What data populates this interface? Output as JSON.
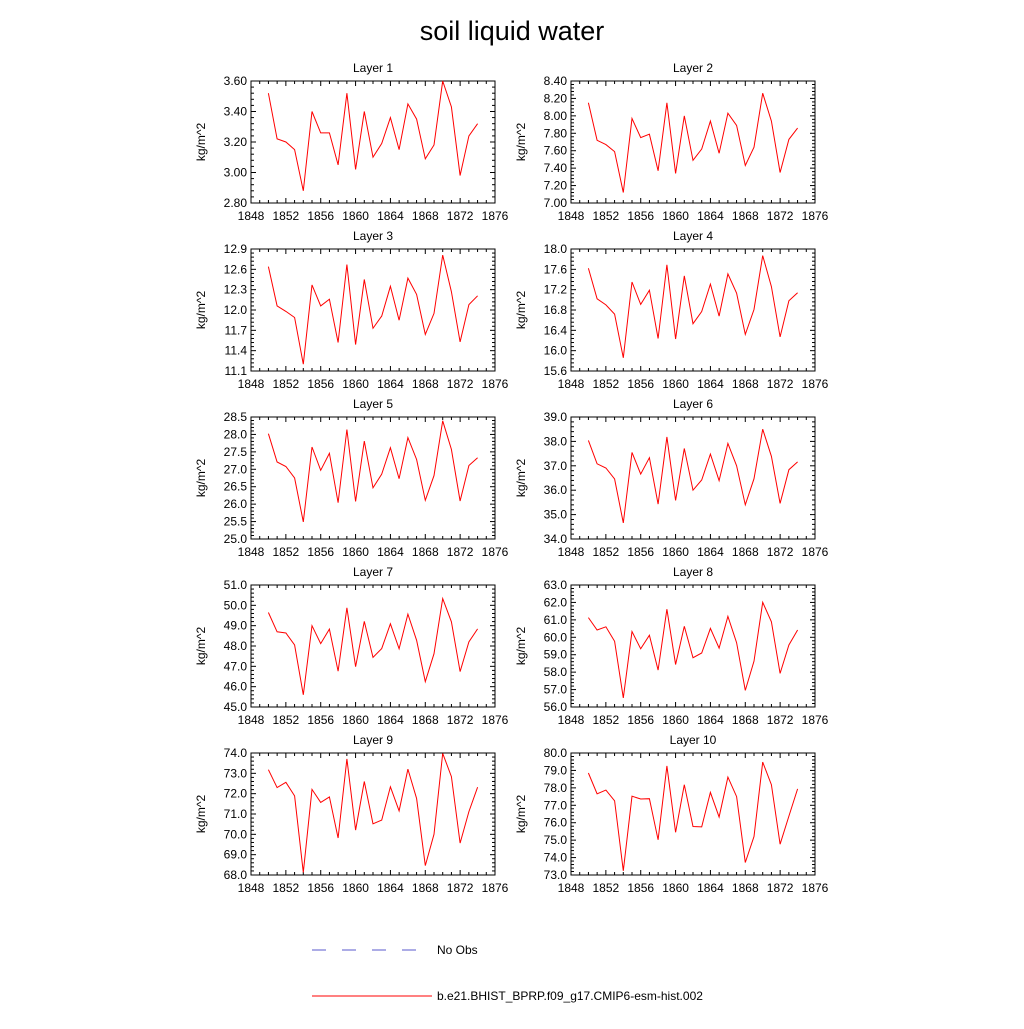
{
  "figure": {
    "title": "soil liquid water"
  },
  "legend": {
    "entries": [
      {
        "label": "No Obs",
        "color": "#5a5acd",
        "dash": true
      },
      {
        "label": "b.e21.BHIST_BPRP.f09_g17.CMIP6-esm-hist.002",
        "color": "#ff0000",
        "dash": false
      }
    ]
  },
  "chart_data": [
    {
      "type": "line",
      "title": "Layer 1",
      "xlabel": "",
      "ylabel": "kg/m^2",
      "xlim": [
        1848,
        1876
      ],
      "ylim": [
        2.8,
        3.6
      ],
      "xticks": [
        "1848",
        "1852",
        "1856",
        "1860",
        "1864",
        "1868",
        "1872",
        "1876"
      ],
      "yticks": [
        "2.80",
        "3.00",
        "3.20",
        "3.40",
        "3.60"
      ],
      "x": [
        1850,
        1851,
        1852,
        1853,
        1854,
        1855,
        1856,
        1857,
        1858,
        1859,
        1860,
        1861,
        1862,
        1863,
        1864,
        1865,
        1866,
        1867,
        1868,
        1869,
        1870,
        1871,
        1872,
        1873,
        1874
      ],
      "series": [
        {
          "name": "b.e21.BHIST_BPRP.f09_g17.CMIP6-esm-hist.002",
          "values": [
            3.52,
            3.22,
            3.2,
            3.15,
            2.88,
            3.4,
            3.26,
            3.26,
            3.05,
            3.52,
            3.02,
            3.4,
            3.1,
            3.19,
            3.36,
            3.15,
            3.45,
            3.35,
            3.09,
            3.18,
            3.6,
            3.43,
            2.98,
            3.24,
            3.32
          ]
        }
      ]
    },
    {
      "type": "line",
      "title": "Layer 2",
      "xlabel": "",
      "ylabel": "kg/m^2",
      "xlim": [
        1848,
        1876
      ],
      "ylim": [
        7.0,
        8.4
      ],
      "xticks": [
        "1848",
        "1852",
        "1856",
        "1860",
        "1864",
        "1868",
        "1872",
        "1876"
      ],
      "yticks": [
        "7.00",
        "7.20",
        "7.40",
        "7.60",
        "7.80",
        "8.00",
        "8.20",
        "8.40"
      ],
      "x": [
        1850,
        1851,
        1852,
        1853,
        1854,
        1855,
        1856,
        1857,
        1858,
        1859,
        1860,
        1861,
        1862,
        1863,
        1864,
        1865,
        1866,
        1867,
        1868,
        1869,
        1870,
        1871,
        1872,
        1873,
        1874
      ],
      "series": [
        {
          "name": "b.e21.BHIST_BPRP.f09_g17.CMIP6-esm-hist.002",
          "values": [
            8.15,
            7.72,
            7.67,
            7.59,
            7.12,
            7.97,
            7.75,
            7.79,
            7.37,
            8.15,
            7.34,
            8.0,
            7.49,
            7.62,
            7.94,
            7.57,
            8.03,
            7.89,
            7.43,
            7.64,
            8.26,
            7.94,
            7.35,
            7.73,
            7.86
          ]
        }
      ]
    },
    {
      "type": "line",
      "title": "Layer 3",
      "xlabel": "",
      "ylabel": "kg/m^2",
      "xlim": [
        1848,
        1876
      ],
      "ylim": [
        11.1,
        12.9
      ],
      "xticks": [
        "1848",
        "1852",
        "1856",
        "1860",
        "1864",
        "1868",
        "1872",
        "1876"
      ],
      "yticks": [
        "11.1",
        "11.4",
        "11.7",
        "12.0",
        "12.3",
        "12.6",
        "12.9"
      ],
      "x": [
        1850,
        1851,
        1852,
        1853,
        1854,
        1855,
        1856,
        1857,
        1858,
        1859,
        1860,
        1861,
        1862,
        1863,
        1864,
        1865,
        1866,
        1867,
        1868,
        1869,
        1870,
        1871,
        1872,
        1873,
        1874
      ],
      "series": [
        {
          "name": "b.e21.BHIST_BPRP.f09_g17.CMIP6-esm-hist.002",
          "values": [
            12.64,
            12.06,
            11.98,
            11.89,
            11.2,
            12.37,
            12.06,
            12.16,
            11.52,
            12.67,
            11.49,
            12.45,
            11.73,
            11.91,
            12.35,
            11.85,
            12.47,
            12.23,
            11.64,
            11.95,
            12.81,
            12.27,
            11.53,
            12.08,
            12.21
          ]
        }
      ]
    },
    {
      "type": "line",
      "title": "Layer 4",
      "xlabel": "",
      "ylabel": "kg/m^2",
      "xlim": [
        1848,
        1876
      ],
      "ylim": [
        15.6,
        18.0
      ],
      "xticks": [
        "1848",
        "1852",
        "1856",
        "1860",
        "1864",
        "1868",
        "1872",
        "1876"
      ],
      "yticks": [
        "15.6",
        "16.0",
        "16.4",
        "16.8",
        "17.2",
        "17.6",
        "18.0"
      ],
      "x": [
        1850,
        1851,
        1852,
        1853,
        1854,
        1855,
        1856,
        1857,
        1858,
        1859,
        1860,
        1861,
        1862,
        1863,
        1864,
        1865,
        1866,
        1867,
        1868,
        1869,
        1870,
        1871,
        1872,
        1873,
        1874
      ],
      "series": [
        {
          "name": "b.e21.BHIST_BPRP.f09_g17.CMIP6-esm-hist.002",
          "values": [
            17.62,
            17.02,
            16.9,
            16.72,
            15.86,
            17.35,
            16.91,
            17.19,
            16.24,
            17.69,
            16.23,
            17.47,
            16.53,
            16.77,
            17.31,
            16.68,
            17.51,
            17.13,
            16.32,
            16.81,
            17.87,
            17.26,
            16.27,
            16.98,
            17.14
          ]
        }
      ]
    },
    {
      "type": "line",
      "title": "Layer 5",
      "xlabel": "",
      "ylabel": "kg/m^2",
      "xlim": [
        1848,
        1876
      ],
      "ylim": [
        25.0,
        28.5
      ],
      "xticks": [
        "1848",
        "1852",
        "1856",
        "1860",
        "1864",
        "1868",
        "1872",
        "1876"
      ],
      "yticks": [
        "25.0",
        "25.5",
        "26.0",
        "26.5",
        "27.0",
        "27.5",
        "28.0",
        "28.5"
      ],
      "x": [
        1850,
        1851,
        1852,
        1853,
        1854,
        1855,
        1856,
        1857,
        1858,
        1859,
        1860,
        1861,
        1862,
        1863,
        1864,
        1865,
        1866,
        1867,
        1868,
        1869,
        1870,
        1871,
        1872,
        1873,
        1874
      ],
      "series": [
        {
          "name": "b.e21.BHIST_BPRP.f09_g17.CMIP6-esm-hist.002",
          "values": [
            28.02,
            27.21,
            27.08,
            26.75,
            25.49,
            27.64,
            26.97,
            27.46,
            26.04,
            28.14,
            26.08,
            27.81,
            26.47,
            26.86,
            27.62,
            26.73,
            27.91,
            27.28,
            26.11,
            26.82,
            28.39,
            27.57,
            26.09,
            27.11,
            27.33
          ]
        }
      ]
    },
    {
      "type": "line",
      "title": "Layer 6",
      "xlabel": "",
      "ylabel": "kg/m^2",
      "xlim": [
        1848,
        1876
      ],
      "ylim": [
        34.0,
        39.0
      ],
      "xticks": [
        "1848",
        "1852",
        "1856",
        "1860",
        "1864",
        "1868",
        "1872",
        "1876"
      ],
      "yticks": [
        "34.0",
        "35.0",
        "36.0",
        "37.0",
        "38.0",
        "39.0"
      ],
      "x": [
        1850,
        1851,
        1852,
        1853,
        1854,
        1855,
        1856,
        1857,
        1858,
        1859,
        1860,
        1861,
        1862,
        1863,
        1864,
        1865,
        1866,
        1867,
        1868,
        1869,
        1870,
        1871,
        1872,
        1873,
        1874
      ],
      "series": [
        {
          "name": "b.e21.BHIST_BPRP.f09_g17.CMIP6-esm-hist.002",
          "values": [
            38.04,
            37.08,
            36.91,
            36.46,
            34.66,
            37.55,
            36.66,
            37.33,
            35.43,
            38.18,
            35.58,
            37.71,
            36.0,
            36.42,
            37.48,
            36.39,
            37.92,
            37.0,
            35.4,
            36.47,
            38.5,
            37.39,
            35.46,
            36.84,
            37.16
          ]
        }
      ]
    },
    {
      "type": "line",
      "title": "Layer 7",
      "xlabel": "",
      "ylabel": "kg/m^2",
      "xlim": [
        1848,
        1876
      ],
      "ylim": [
        45.0,
        51.0
      ],
      "xticks": [
        "1848",
        "1852",
        "1856",
        "1860",
        "1864",
        "1868",
        "1872",
        "1876"
      ],
      "yticks": [
        "45.0",
        "46.0",
        "47.0",
        "48.0",
        "49.0",
        "50.0",
        "51.0"
      ],
      "x": [
        1850,
        1851,
        1852,
        1853,
        1854,
        1855,
        1856,
        1857,
        1858,
        1859,
        1860,
        1861,
        1862,
        1863,
        1864,
        1865,
        1866,
        1867,
        1868,
        1869,
        1870,
        1871,
        1872,
        1873,
        1874
      ],
      "series": [
        {
          "name": "b.e21.BHIST_BPRP.f09_g17.CMIP6-esm-hist.002",
          "values": [
            49.65,
            48.7,
            48.64,
            48.05,
            45.6,
            49.0,
            48.12,
            48.83,
            46.76,
            49.88,
            46.98,
            49.21,
            47.44,
            47.87,
            49.09,
            47.86,
            49.57,
            48.28,
            46.25,
            47.62,
            50.33,
            49.19,
            46.74,
            48.2,
            48.84
          ]
        }
      ]
    },
    {
      "type": "line",
      "title": "Layer 8",
      "xlabel": "",
      "ylabel": "kg/m^2",
      "xlim": [
        1848,
        1876
      ],
      "ylim": [
        56.0,
        63.0
      ],
      "xticks": [
        "1848",
        "1852",
        "1856",
        "1860",
        "1864",
        "1868",
        "1872",
        "1876"
      ],
      "yticks": [
        "56.0",
        "57.0",
        "58.0",
        "59.0",
        "60.0",
        "61.0",
        "62.0",
        "63.0"
      ],
      "x": [
        1850,
        1851,
        1852,
        1853,
        1854,
        1855,
        1856,
        1857,
        1858,
        1859,
        1860,
        1861,
        1862,
        1863,
        1864,
        1865,
        1866,
        1867,
        1868,
        1869,
        1870,
        1871,
        1872,
        1873,
        1874
      ],
      "series": [
        {
          "name": "b.e21.BHIST_BPRP.f09_g17.CMIP6-esm-hist.002",
          "values": [
            61.13,
            60.42,
            60.6,
            59.77,
            56.52,
            60.33,
            59.34,
            60.12,
            58.12,
            61.61,
            58.44,
            60.63,
            58.83,
            59.1,
            60.51,
            59.38,
            61.2,
            59.69,
            56.95,
            58.63,
            62.01,
            60.89,
            57.93,
            59.56,
            60.42
          ]
        }
      ]
    },
    {
      "type": "line",
      "title": "Layer 9",
      "xlabel": "",
      "ylabel": "kg/m^2",
      "xlim": [
        1848,
        1876
      ],
      "ylim": [
        68.0,
        74.0
      ],
      "xticks": [
        "1848",
        "1852",
        "1856",
        "1860",
        "1864",
        "1868",
        "1872",
        "1876"
      ],
      "yticks": [
        "68.0",
        "69.0",
        "70.0",
        "71.0",
        "72.0",
        "73.0",
        "74.0"
      ],
      "x": [
        1850,
        1851,
        1852,
        1853,
        1854,
        1855,
        1856,
        1857,
        1858,
        1859,
        1860,
        1861,
        1862,
        1863,
        1864,
        1865,
        1866,
        1867,
        1868,
        1869,
        1870,
        1871,
        1872,
        1873,
        1874
      ],
      "series": [
        {
          "name": "b.e21.BHIST_BPRP.f09_g17.CMIP6-esm-hist.002",
          "values": [
            73.18,
            72.3,
            72.56,
            71.89,
            68.13,
            72.21,
            71.57,
            71.84,
            69.82,
            73.71,
            70.21,
            72.6,
            70.52,
            70.7,
            72.34,
            71.15,
            73.21,
            71.76,
            68.46,
            70.0,
            73.98,
            72.84,
            69.57,
            71.12,
            72.32
          ]
        }
      ]
    },
    {
      "type": "line",
      "title": "Layer 10",
      "xlabel": "",
      "ylabel": "kg/m^2",
      "xlim": [
        1848,
        1876
      ],
      "ylim": [
        73.0,
        80.0
      ],
      "xticks": [
        "1848",
        "1852",
        "1856",
        "1860",
        "1864",
        "1868",
        "1872",
        "1876"
      ],
      "yticks": [
        "73.0",
        "74.0",
        "75.0",
        "76.0",
        "77.0",
        "78.0",
        "79.0",
        "80.0"
      ],
      "x": [
        1850,
        1851,
        1852,
        1853,
        1854,
        1855,
        1856,
        1857,
        1858,
        1859,
        1860,
        1861,
        1862,
        1863,
        1864,
        1865,
        1866,
        1867,
        1868,
        1869,
        1870,
        1871,
        1872,
        1873,
        1874
      ],
      "series": [
        {
          "name": "b.e21.BHIST_BPRP.f09_g17.CMIP6-esm-hist.002",
          "values": [
            78.85,
            77.66,
            77.87,
            77.26,
            73.24,
            77.52,
            77.36,
            77.38,
            75.02,
            79.26,
            75.45,
            78.18,
            75.78,
            75.76,
            77.74,
            76.33,
            78.62,
            77.5,
            73.72,
            75.21,
            79.48,
            78.18,
            74.77,
            76.38,
            77.94
          ]
        }
      ]
    }
  ]
}
